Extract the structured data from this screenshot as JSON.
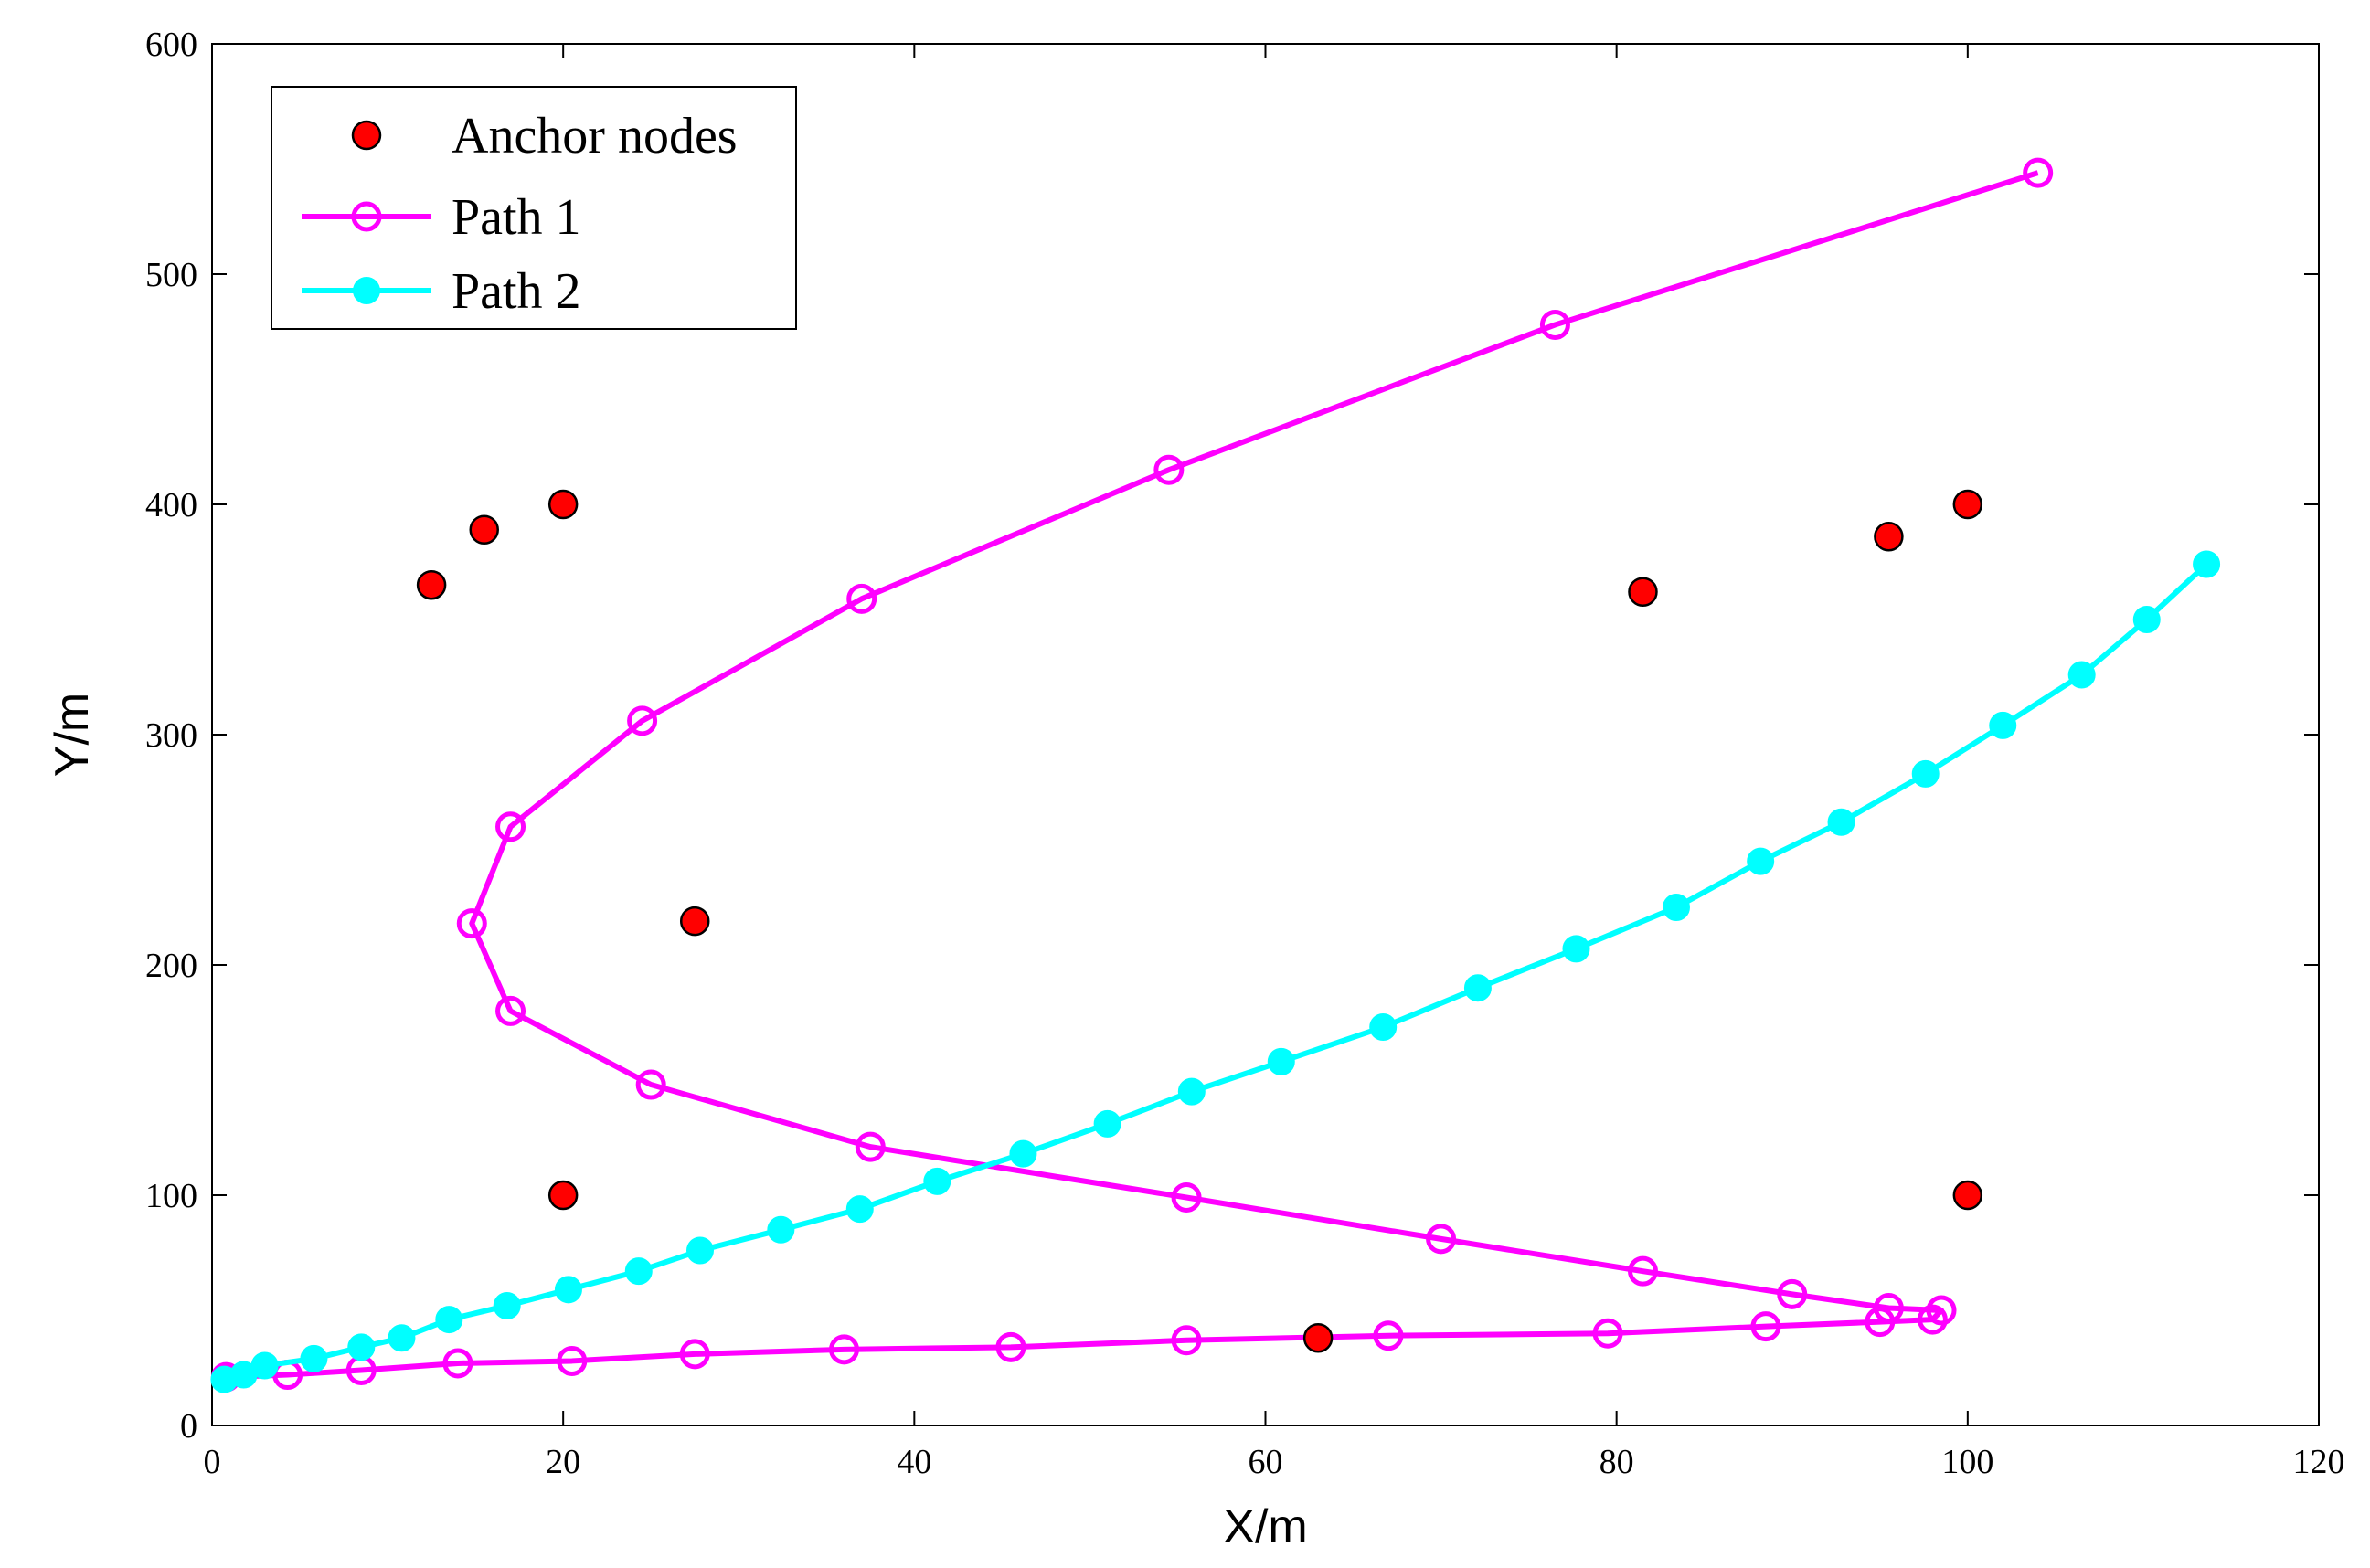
{
  "chart_data": {
    "type": "scatter",
    "title": "",
    "xlabel": "X/m",
    "ylabel": "Y/m",
    "xlim": [
      0,
      120
    ],
    "ylim": [
      0,
      600
    ],
    "xticks": [
      0,
      20,
      40,
      60,
      80,
      100,
      120
    ],
    "yticks": [
      0,
      100,
      200,
      300,
      400,
      500,
      600
    ],
    "grid": false,
    "legend_position": "top-left",
    "series": [
      {
        "name": "Anchor nodes",
        "kind": "markers",
        "marker": "filled-circle",
        "color": "#ff0000",
        "edge_color": "#000000",
        "points": [
          [
            12.5,
            365
          ],
          [
            15.5,
            389
          ],
          [
            20,
            400
          ],
          [
            27.5,
            219
          ],
          [
            20,
            100
          ],
          [
            63,
            38
          ],
          [
            81.5,
            362
          ],
          [
            95.5,
            386
          ],
          [
            100,
            400
          ],
          [
            100,
            100
          ]
        ]
      },
      {
        "name": "Path 1",
        "kind": "line-markers",
        "marker": "open-circle",
        "color": "#ff00ff",
        "points": [
          [
            104,
            544
          ],
          [
            76.5,
            478
          ],
          [
            54.5,
            415
          ],
          [
            37,
            359
          ],
          [
            24.5,
            306
          ],
          [
            17,
            260
          ],
          [
            14.8,
            218
          ],
          [
            17,
            180
          ],
          [
            25,
            148
          ],
          [
            37.5,
            121
          ],
          [
            55.5,
            99
          ],
          [
            70,
            81
          ],
          [
            81.5,
            67
          ],
          [
            90,
            57
          ],
          [
            95.5,
            51
          ],
          [
            98.5,
            50
          ],
          [
            98,
            46
          ],
          [
            95,
            45
          ],
          [
            88.5,
            43
          ],
          [
            79.5,
            40
          ],
          [
            67,
            39
          ],
          [
            55.5,
            37
          ],
          [
            45.5,
            34
          ],
          [
            36,
            33
          ],
          [
            27.5,
            31
          ],
          [
            20.5,
            28
          ],
          [
            14,
            27
          ],
          [
            8.5,
            24
          ],
          [
            4.3,
            22
          ],
          [
            0.8,
            21
          ]
        ]
      },
      {
        "name": "Path 2",
        "kind": "line-markers",
        "marker": "filled-circle",
        "color": "#00ffff",
        "points": [
          [
            0.7,
            20
          ],
          [
            1.8,
            22
          ],
          [
            3,
            26
          ],
          [
            5.8,
            29
          ],
          [
            8.5,
            34
          ],
          [
            10.8,
            38
          ],
          [
            13.5,
            46
          ],
          [
            16.8,
            52
          ],
          [
            20.3,
            59
          ],
          [
            24.3,
            67
          ],
          [
            27.8,
            76
          ],
          [
            32.4,
            85
          ],
          [
            36.9,
            94
          ],
          [
            41.3,
            106
          ],
          [
            46.2,
            118
          ],
          [
            51,
            131
          ],
          [
            55.8,
            145
          ],
          [
            60.9,
            158
          ],
          [
            66.7,
            173
          ],
          [
            72.1,
            190
          ],
          [
            77.7,
            207
          ],
          [
            83.4,
            225
          ],
          [
            88.2,
            245
          ],
          [
            92.8,
            262
          ],
          [
            97.6,
            283
          ],
          [
            102,
            304
          ],
          [
            106.5,
            326
          ],
          [
            110.2,
            350
          ],
          [
            113.6,
            374
          ]
        ]
      }
    ]
  }
}
